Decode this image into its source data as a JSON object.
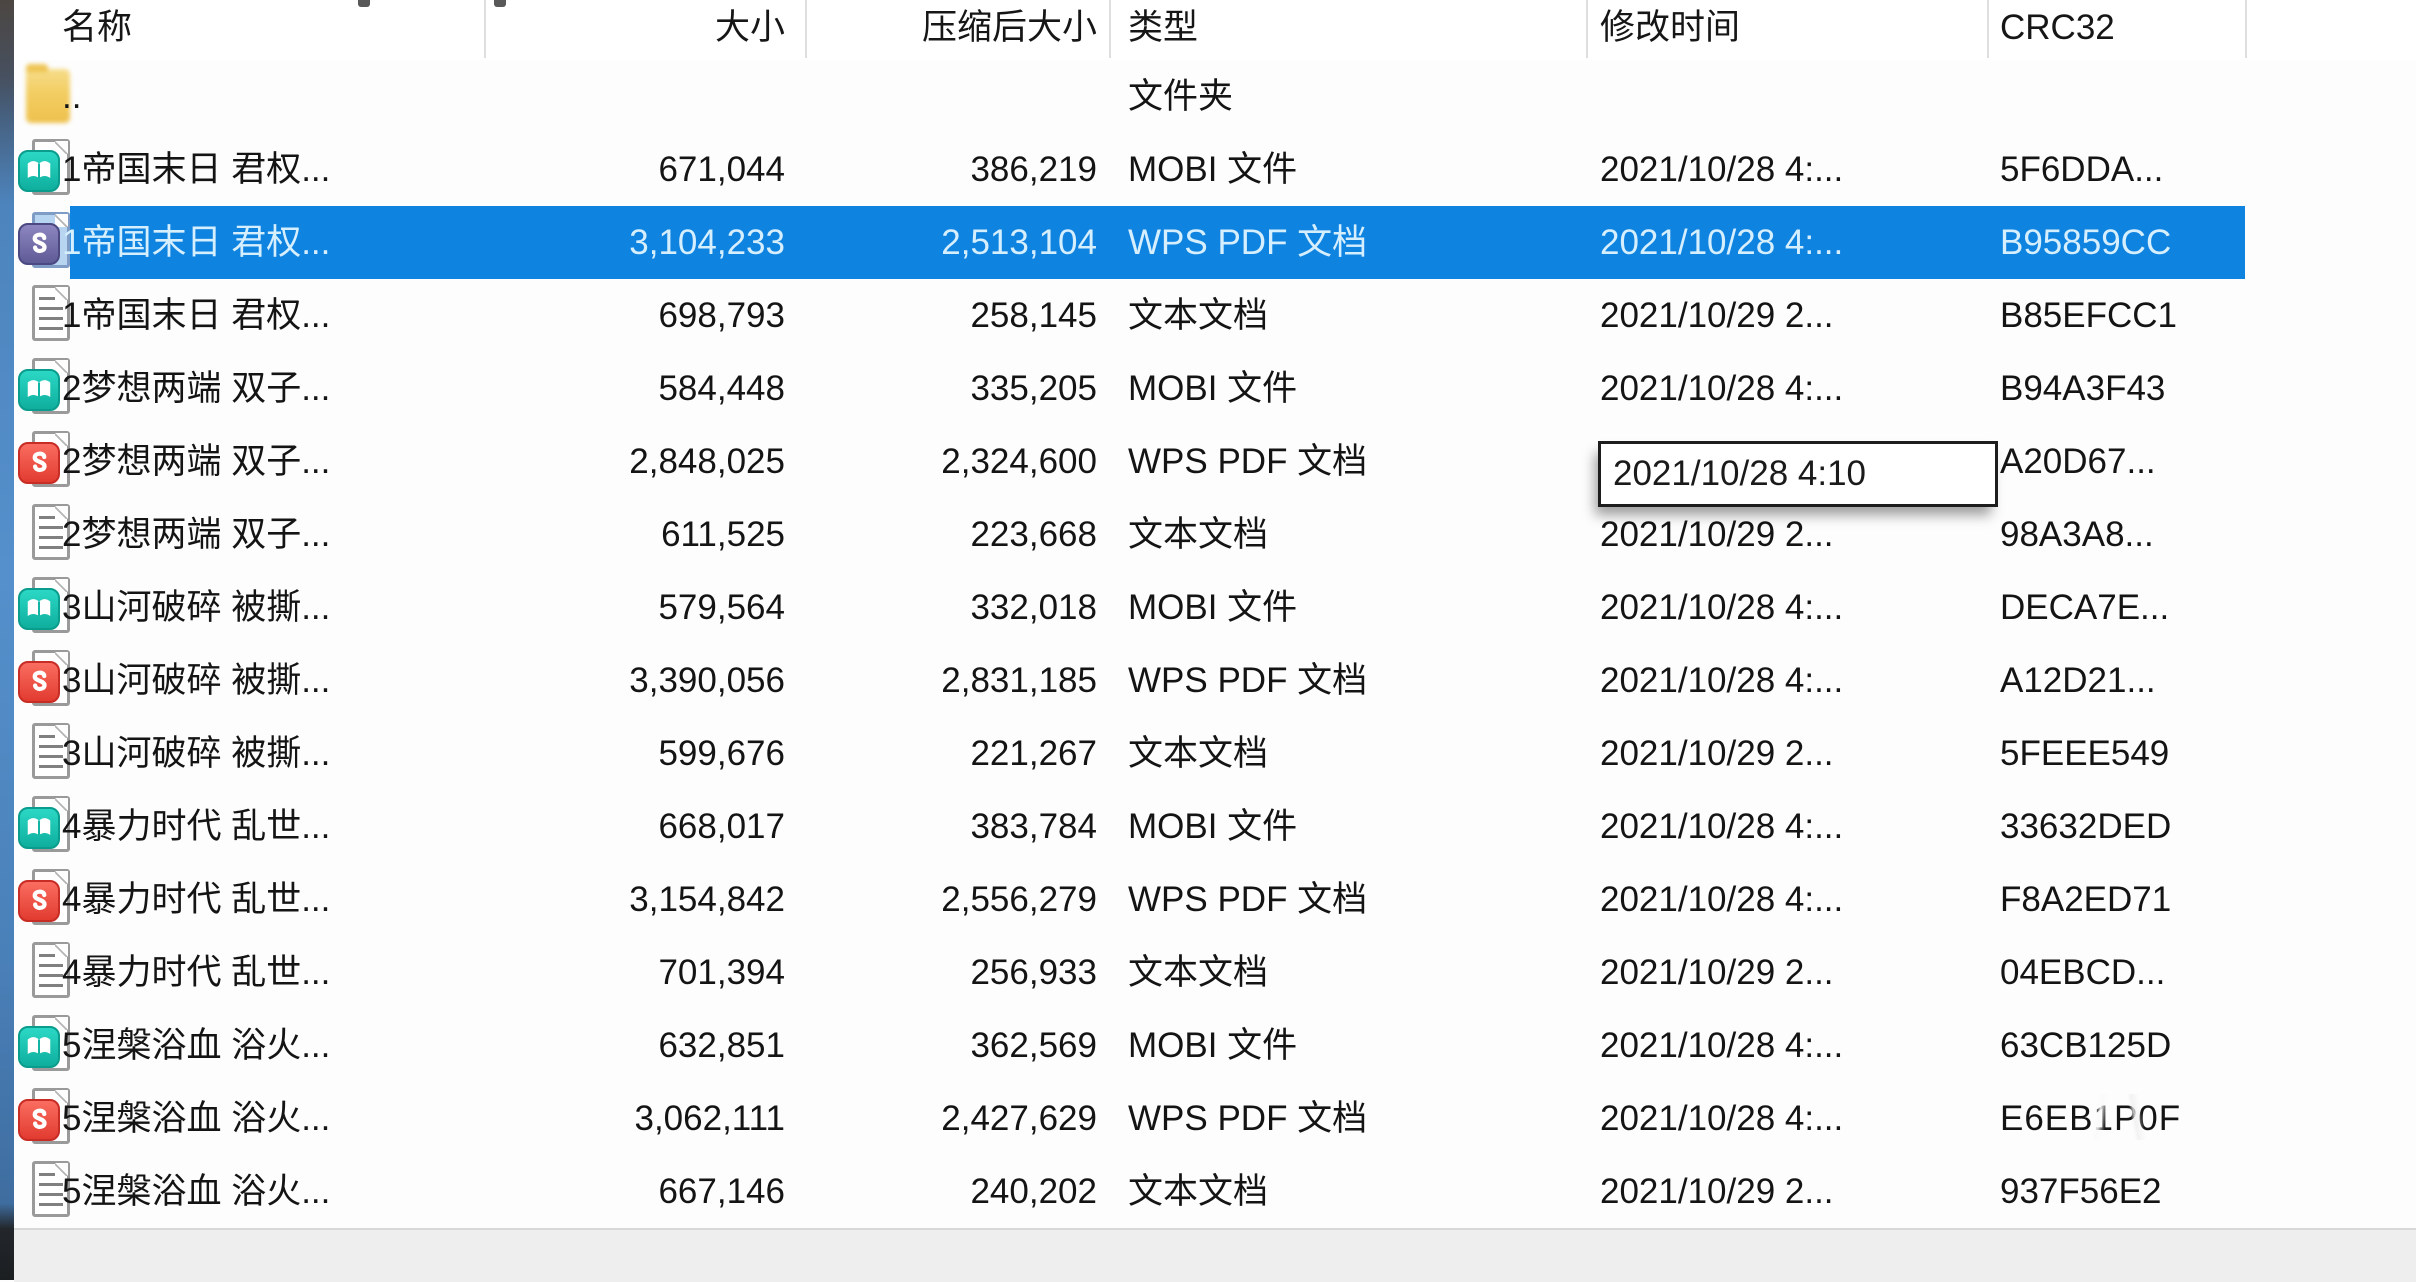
{
  "header": {
    "columns": [
      {
        "id": "name",
        "label": "名称"
      },
      {
        "id": "size",
        "label": "大小"
      },
      {
        "id": "packed",
        "label": "压缩后大小"
      },
      {
        "id": "type",
        "label": "类型"
      },
      {
        "id": "mtime",
        "label": "修改时间"
      },
      {
        "id": "crc",
        "label": "CRC32"
      }
    ]
  },
  "tooltip": {
    "text": "2021/10/28 4:10",
    "row_index": 5
  },
  "rows": [
    {
      "icon": "folder",
      "name": "..",
      "size": "",
      "packed": "",
      "type": "文件夹",
      "mtime": "",
      "crc": ""
    },
    {
      "icon": "mobi",
      "name": "1帝国末日 君权...",
      "size": "671,044",
      "packed": "386,219",
      "type": "MOBI 文件",
      "mtime": "2021/10/28 4:...",
      "crc": "5F6DDA..."
    },
    {
      "icon": "pdf",
      "name": "1帝国末日 君权...",
      "size": "3,104,233",
      "packed": "2,513,104",
      "type": "WPS PDF 文档",
      "mtime": "2021/10/28 4:...",
      "crc": "B95859CC",
      "selected": true
    },
    {
      "icon": "txt",
      "name": "1帝国末日 君权...",
      "size": "698,793",
      "packed": "258,145",
      "type": "文本文档",
      "mtime": "2021/10/29 2...",
      "crc": "B85EFCC1"
    },
    {
      "icon": "mobi",
      "name": "2梦想两端 双子...",
      "size": "584,448",
      "packed": "335,205",
      "type": "MOBI 文件",
      "mtime": "2021/10/28 4:...",
      "crc": "B94A3F43"
    },
    {
      "icon": "pdf",
      "name": "2梦想两端 双子...",
      "size": "2,848,025",
      "packed": "2,324,600",
      "type": "WPS PDF 文档",
      "mtime": "",
      "crc": "A20D67...",
      "has_tooltip": true
    },
    {
      "icon": "txt",
      "name": "2梦想两端 双子...",
      "size": "611,525",
      "packed": "223,668",
      "type": "文本文档",
      "mtime": "2021/10/29 2...",
      "crc": "98A3A8..."
    },
    {
      "icon": "mobi",
      "name": "3山河破碎 被撕...",
      "size": "579,564",
      "packed": "332,018",
      "type": "MOBI 文件",
      "mtime": "2021/10/28 4:...",
      "crc": "DECA7E..."
    },
    {
      "icon": "pdf",
      "name": "3山河破碎 被撕...",
      "size": "3,390,056",
      "packed": "2,831,185",
      "type": "WPS PDF 文档",
      "mtime": "2021/10/28 4:...",
      "crc": "A12D21..."
    },
    {
      "icon": "txt",
      "name": "3山河破碎 被撕...",
      "size": "599,676",
      "packed": "221,267",
      "type": "文本文档",
      "mtime": "2021/10/29 2...",
      "crc": "5FEEE549"
    },
    {
      "icon": "mobi",
      "name": "4暴力时代 乱世...",
      "size": "668,017",
      "packed": "383,784",
      "type": "MOBI 文件",
      "mtime": "2021/10/28 4:...",
      "crc": "33632DED"
    },
    {
      "icon": "pdf",
      "name": "4暴力时代 乱世...",
      "size": "3,154,842",
      "packed": "2,556,279",
      "type": "WPS PDF 文档",
      "mtime": "2021/10/28 4:...",
      "crc": "F8A2ED71"
    },
    {
      "icon": "txt",
      "name": "4暴力时代 乱世...",
      "size": "701,394",
      "packed": "256,933",
      "type": "文本文档",
      "mtime": "2021/10/29 2...",
      "crc": "04EBCD..."
    },
    {
      "icon": "mobi",
      "name": "5涅槃浴血 浴火...",
      "size": "632,851",
      "packed": "362,569",
      "type": "MOBI 文件",
      "mtime": "2021/10/28 4:...",
      "crc": "63CB125D"
    },
    {
      "icon": "pdf",
      "name": "5涅槃浴血 浴火...",
      "size": "3,062,111",
      "packed": "2,427,629",
      "type": "WPS PDF 文档",
      "mtime": "2021/10/28 4:...",
      "crc": "E6EB1P0F",
      "garbled": true
    },
    {
      "icon": "txt",
      "name": "5涅槃浴血 浴火...",
      "size": "667,146",
      "packed": "240,202",
      "type": "文本文档",
      "mtime": "2021/10/29 2...",
      "crc": "937F56E2"
    }
  ],
  "icon_names": {
    "folder": "folder-icon",
    "mobi": "mobi-file-icon",
    "pdf": "wps-pdf-file-icon",
    "txt": "text-file-icon"
  },
  "colors": {
    "selection_blue": "#0f83e0",
    "selection_text": "#d6efff",
    "mobi_teal": "#16c4b2",
    "wps_pdf_red": "#ef4d41",
    "folder_yellow": "#f3cd62"
  }
}
